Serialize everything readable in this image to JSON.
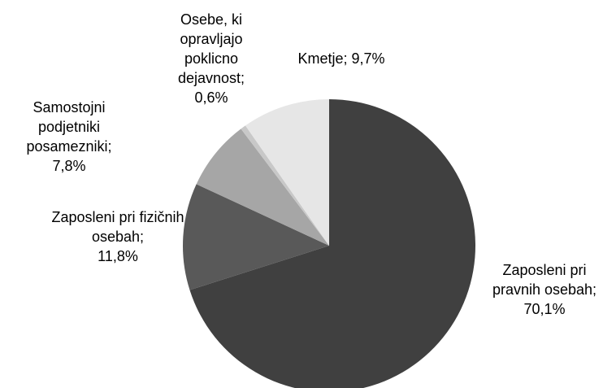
{
  "chart_data": {
    "type": "pie",
    "categories": [
      "Zaposleni pri pravnih osebah",
      "Zaposleni pri fizičnih osebah",
      "Samostojni podjetniki posamezniki",
      "Osebe, ki opravljajo poklicno dejavnost",
      "Kmetje"
    ],
    "values": [
      70.1,
      11.8,
      7.8,
      0.6,
      9.7
    ],
    "value_labels": [
      "70,1%",
      "11,8%",
      "7,8%",
      "0,6%",
      "9,7%"
    ],
    "label_separator": ";",
    "colors": [
      "#404040",
      "#595959",
      "#a6a6a6",
      "#c8c8c8",
      "#e6e6e6"
    ]
  }
}
